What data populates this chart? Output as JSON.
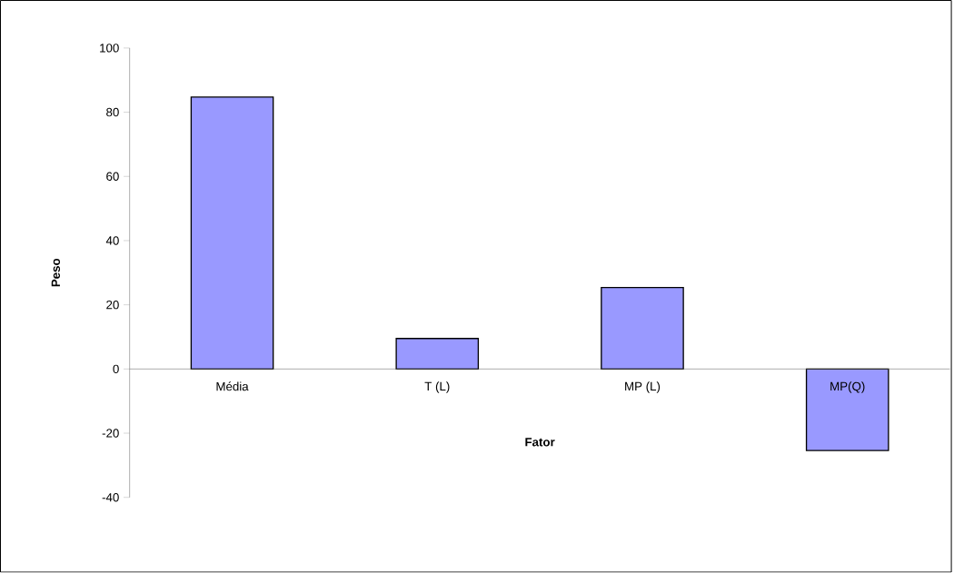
{
  "chart_data": {
    "type": "bar",
    "xlabel": "Fator",
    "ylabel": "Peso",
    "categories": [
      "Média",
      "T (L)",
      "MP (L)",
      "MP(Q)"
    ],
    "values": [
      84.7,
      9.5,
      25.4,
      -25.4
    ],
    "color": "#9999ff",
    "ylim": [
      -40,
      100
    ],
    "yticks": [
      -40,
      -20,
      0,
      20,
      40,
      60,
      80,
      100
    ],
    "grid": false
  }
}
